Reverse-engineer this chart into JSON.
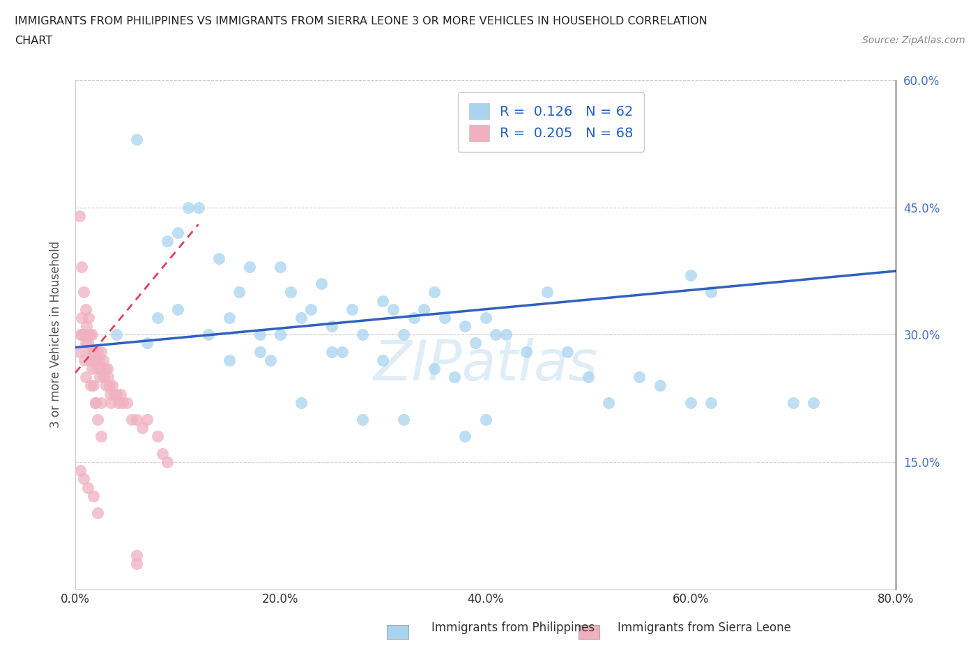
{
  "title_line1": "IMMIGRANTS FROM PHILIPPINES VS IMMIGRANTS FROM SIERRA LEONE 3 OR MORE VEHICLES IN HOUSEHOLD CORRELATION",
  "title_line2": "CHART",
  "source": "Source: ZipAtlas.com",
  "ylabel": "3 or more Vehicles in Household",
  "legend_label1": "Immigrants from Philippines",
  "legend_label2": "Immigrants from Sierra Leone",
  "R1": 0.126,
  "N1": 62,
  "R2": 0.205,
  "N2": 68,
  "xlim": [
    0.0,
    0.8
  ],
  "ylim": [
    0.0,
    0.6
  ],
  "xticks": [
    0.0,
    0.2,
    0.4,
    0.6,
    0.8
  ],
  "xticklabels": [
    "0.0%",
    "20.0%",
    "40.0%",
    "60.0%",
    "80.0%"
  ],
  "yticks": [
    0.0,
    0.15,
    0.3,
    0.45,
    0.6
  ],
  "yticklabels_right": [
    "",
    "15.0%",
    "30.0%",
    "45.0%",
    "60.0%"
  ],
  "color_philippines": "#a8d4f0",
  "color_sierra_leone": "#f0b0c0",
  "line_color_philippines": "#3060c0",
  "line_color_sierra_leone": "#e04060",
  "watermark": "ZIPatlas",
  "background_color": "#ffffff",
  "philippines_x": [
    0.04,
    0.06,
    0.07,
    0.08,
    0.09,
    0.1,
    0.11,
    0.12,
    0.13,
    0.14,
    0.15,
    0.16,
    0.17,
    0.18,
    0.19,
    0.2,
    0.21,
    0.22,
    0.23,
    0.24,
    0.25,
    0.26,
    0.27,
    0.28,
    0.3,
    0.31,
    0.32,
    0.33,
    0.34,
    0.35,
    0.36,
    0.37,
    0.38,
    0.39,
    0.4,
    0.41,
    0.42,
    0.44,
    0.46,
    0.48,
    0.5,
    0.52,
    0.55,
    0.57,
    0.6,
    0.62,
    0.7,
    0.72,
    0.15,
    0.2,
    0.25,
    0.3,
    0.35,
    0.4,
    0.1,
    0.18,
    0.28,
    0.38,
    0.22,
    0.32,
    0.6,
    0.62
  ],
  "philippines_y": [
    0.3,
    0.53,
    0.29,
    0.32,
    0.41,
    0.42,
    0.45,
    0.45,
    0.3,
    0.39,
    0.27,
    0.35,
    0.38,
    0.3,
    0.27,
    0.38,
    0.35,
    0.32,
    0.33,
    0.36,
    0.31,
    0.28,
    0.33,
    0.3,
    0.34,
    0.33,
    0.3,
    0.32,
    0.33,
    0.35,
    0.32,
    0.25,
    0.31,
    0.29,
    0.32,
    0.3,
    0.3,
    0.28,
    0.35,
    0.28,
    0.25,
    0.22,
    0.25,
    0.24,
    0.22,
    0.35,
    0.22,
    0.22,
    0.32,
    0.3,
    0.28,
    0.27,
    0.26,
    0.2,
    0.33,
    0.28,
    0.2,
    0.18,
    0.22,
    0.2,
    0.37,
    0.22
  ],
  "sierra_leone_x": [
    0.004,
    0.005,
    0.006,
    0.007,
    0.008,
    0.009,
    0.01,
    0.011,
    0.012,
    0.013,
    0.014,
    0.015,
    0.016,
    0.017,
    0.018,
    0.019,
    0.02,
    0.021,
    0.022,
    0.023,
    0.024,
    0.025,
    0.026,
    0.027,
    0.028,
    0.029,
    0.03,
    0.031,
    0.032,
    0.033,
    0.034,
    0.035,
    0.036,
    0.038,
    0.04,
    0.042,
    0.044,
    0.046,
    0.05,
    0.055,
    0.06,
    0.065,
    0.07,
    0.08,
    0.085,
    0.09,
    0.01,
    0.015,
    0.02,
    0.025,
    0.005,
    0.008,
    0.012,
    0.018,
    0.022,
    0.004,
    0.006,
    0.008,
    0.01,
    0.012,
    0.014,
    0.016,
    0.018,
    0.02,
    0.022,
    0.025,
    0.06,
    0.06
  ],
  "sierra_leone_y": [
    0.28,
    0.3,
    0.32,
    0.3,
    0.3,
    0.27,
    0.29,
    0.31,
    0.29,
    0.32,
    0.3,
    0.27,
    0.3,
    0.28,
    0.28,
    0.27,
    0.27,
    0.26,
    0.28,
    0.27,
    0.25,
    0.28,
    0.26,
    0.27,
    0.25,
    0.26,
    0.24,
    0.26,
    0.25,
    0.24,
    0.23,
    0.22,
    0.24,
    0.23,
    0.23,
    0.22,
    0.23,
    0.22,
    0.22,
    0.2,
    0.2,
    0.19,
    0.2,
    0.18,
    0.16,
    0.15,
    0.25,
    0.24,
    0.22,
    0.22,
    0.14,
    0.13,
    0.12,
    0.11,
    0.09,
    0.44,
    0.38,
    0.35,
    0.33,
    0.3,
    0.28,
    0.26,
    0.24,
    0.22,
    0.2,
    0.18,
    0.04,
    0.03
  ],
  "phil_trend_x": [
    0.0,
    0.8
  ],
  "phil_trend_y": [
    0.285,
    0.375
  ],
  "sl_trend_x": [
    0.0,
    0.12
  ],
  "sl_trend_y": [
    0.255,
    0.43
  ]
}
